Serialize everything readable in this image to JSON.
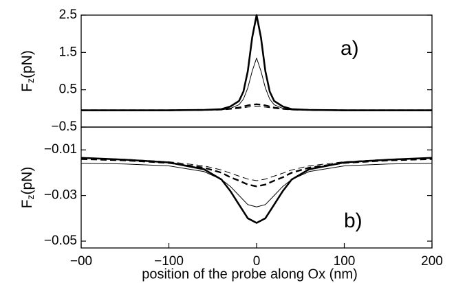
{
  "chart_data": [
    {
      "type": "line",
      "annotation": "a)",
      "ylabel": {
        "main": "F",
        "sub": "z",
        "rest": "(pN)"
      },
      "xlim": [
        -200,
        200
      ],
      "ylim": [
        -0.5,
        2.5
      ],
      "yticks": [
        2.5,
        1.5,
        0.5,
        {
          "value": -0.5,
          "label": "−0.5"
        }
      ],
      "x": [
        -200,
        -150,
        -100,
        -60,
        -40,
        -30,
        -20,
        -15,
        -10,
        -5,
        0,
        5,
        10,
        15,
        20,
        30,
        40,
        60,
        100,
        150,
        200
      ],
      "series": [
        {
          "color": "#000000",
          "width": 2.6,
          "dash": false,
          "values": [
            -0.05,
            -0.05,
            -0.05,
            -0.04,
            -0.02,
            0.05,
            0.2,
            0.45,
            1.0,
            1.9,
            2.5,
            1.9,
            1.0,
            0.45,
            0.2,
            0.05,
            -0.02,
            -0.04,
            -0.05,
            -0.05,
            -0.05
          ]
        },
        {
          "color": "#000000",
          "width": 1,
          "dash": false,
          "values": [
            -0.06,
            -0.06,
            -0.06,
            -0.05,
            -0.04,
            0.0,
            0.1,
            0.25,
            0.55,
            1.0,
            1.35,
            1.0,
            0.55,
            0.25,
            0.1,
            0.0,
            -0.04,
            -0.05,
            -0.06,
            -0.06,
            -0.06
          ]
        },
        {
          "color": "#000000",
          "width": 2.4,
          "dash": true,
          "values": [
            -0.05,
            -0.05,
            -0.05,
            -0.04,
            -0.03,
            -0.01,
            0.02,
            0.05,
            0.08,
            0.1,
            0.11,
            0.1,
            0.08,
            0.05,
            0.02,
            -0.01,
            -0.03,
            -0.04,
            -0.05,
            -0.05,
            -0.05
          ]
        },
        {
          "color": "#000000",
          "width": 1,
          "dash": true,
          "values": [
            -0.05,
            -0.05,
            -0.05,
            -0.045,
            -0.035,
            -0.02,
            0.0,
            0.02,
            0.035,
            0.045,
            0.05,
            0.045,
            0.035,
            0.02,
            0.0,
            -0.02,
            -0.035,
            -0.045,
            -0.05,
            -0.05,
            -0.05
          ]
        }
      ]
    },
    {
      "type": "line",
      "annotation": "b)",
      "ylabel": {
        "main": "F",
        "sub": "z",
        "rest": "(pN)"
      },
      "xlabel": "position of the probe along Ox (nm)",
      "xlim": [
        -200,
        200
      ],
      "xticks": [
        {
          "value": -200,
          "label": "−00"
        },
        {
          "value": -100,
          "label": "−100"
        },
        0,
        100,
        200
      ],
      "ylim": [
        -0.053,
        0
      ],
      "yticks": [
        {
          "value": -0.01,
          "label": "−0.01"
        },
        {
          "value": -0.03,
          "label": "−0.03"
        },
        {
          "value": -0.05,
          "label": "−0.05"
        }
      ],
      "x": [
        -200,
        -150,
        -100,
        -60,
        -40,
        -30,
        -20,
        -10,
        0,
        10,
        20,
        30,
        40,
        60,
        100,
        150,
        200
      ],
      "series": [
        {
          "color": "#000000",
          "width": 2.6,
          "dash": false,
          "values": [
            -0.0135,
            -0.0143,
            -0.0155,
            -0.0185,
            -0.023,
            -0.028,
            -0.034,
            -0.04,
            -0.042,
            -0.04,
            -0.034,
            -0.028,
            -0.023,
            -0.0185,
            -0.0155,
            -0.0143,
            -0.0135
          ]
        },
        {
          "color": "#000000",
          "width": 1,
          "dash": false,
          "values": [
            -0.0158,
            -0.0162,
            -0.017,
            -0.0195,
            -0.023,
            -0.026,
            -0.03,
            -0.034,
            -0.035,
            -0.034,
            -0.03,
            -0.026,
            -0.023,
            -0.0195,
            -0.017,
            -0.0162,
            -0.0158
          ]
        },
        {
          "color": "#000000",
          "width": 2.4,
          "dash": true,
          "values": [
            -0.014,
            -0.0146,
            -0.0157,
            -0.0178,
            -0.02,
            -0.022,
            -0.0235,
            -0.0252,
            -0.026,
            -0.0252,
            -0.0235,
            -0.022,
            -0.02,
            -0.0178,
            -0.0157,
            -0.0146,
            -0.014
          ]
        },
        {
          "color": "#000000",
          "width": 1,
          "dash": true,
          "values": [
            -0.0135,
            -0.0141,
            -0.0152,
            -0.017,
            -0.0188,
            -0.0202,
            -0.0215,
            -0.0228,
            -0.0235,
            -0.0228,
            -0.0215,
            -0.0202,
            -0.0188,
            -0.017,
            -0.0152,
            -0.0141,
            -0.0135
          ]
        }
      ]
    }
  ]
}
